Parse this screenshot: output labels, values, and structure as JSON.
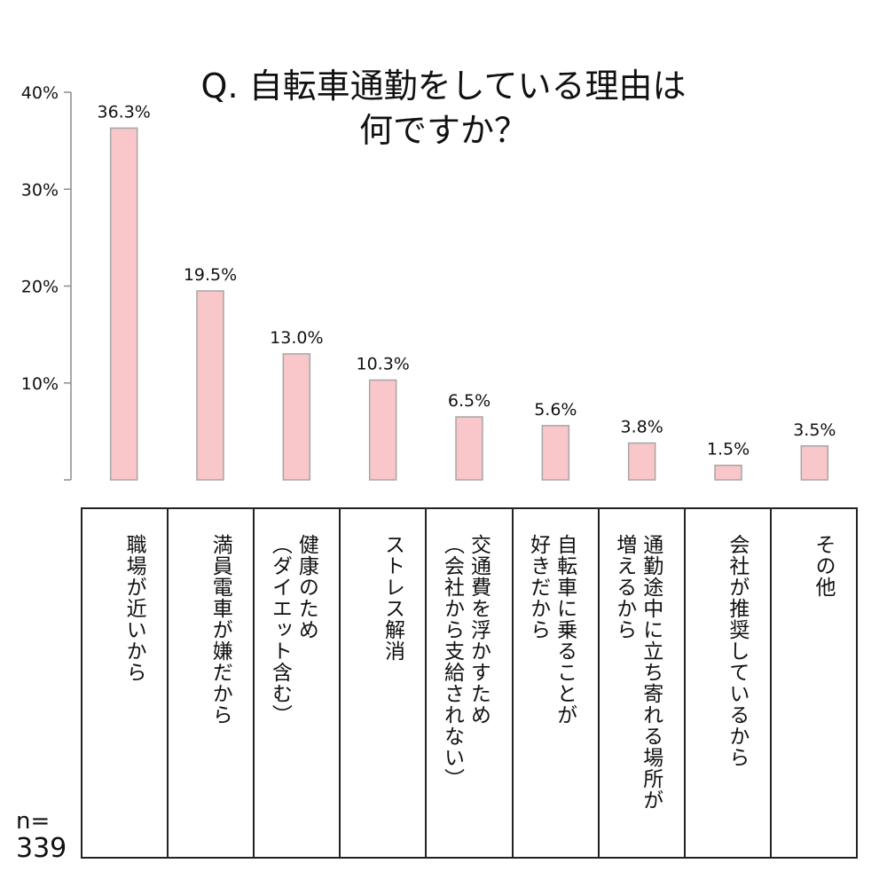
{
  "title_lines": [
    "Q. 自転車通勤をしている理由は",
    "何ですか？"
  ],
  "sample": {
    "label": "n=",
    "value": "339"
  },
  "chart_data": {
    "type": "bar",
    "title": "Q. 自転車通勤をしている理由は何ですか？",
    "categories": [
      "職場が近いから",
      "満員電車が嫌だから",
      "健康のため\n（ダイエット含む）",
      "ストレス解消",
      "交通費を浮かすため\n（会社から支給されない）",
      "自転車に乗ることが\n好きだから",
      "通勤途中に立ち寄れる場所が\n増えるから",
      "会社が推奨しているから",
      "その他"
    ],
    "values": [
      36.3,
      19.5,
      13.0,
      10.3,
      6.5,
      5.6,
      3.8,
      1.5,
      3.5
    ],
    "value_labels": [
      "36.3%",
      "19.5%",
      "13.0%",
      "10.3%",
      "6.5%",
      "5.6%",
      "3.8%",
      "1.5%",
      "3.5%"
    ],
    "y_ticks": [
      10,
      20,
      30,
      40
    ],
    "y_tick_labels": [
      "10%",
      "20%",
      "30%",
      "40%"
    ],
    "ylim": [
      0,
      40
    ],
    "grid": false,
    "legend": "none",
    "colors": {
      "bar_fill": "#f9c6c9",
      "bar_stroke": "#a6a6a6",
      "axis": "#8c8c8c"
    }
  }
}
